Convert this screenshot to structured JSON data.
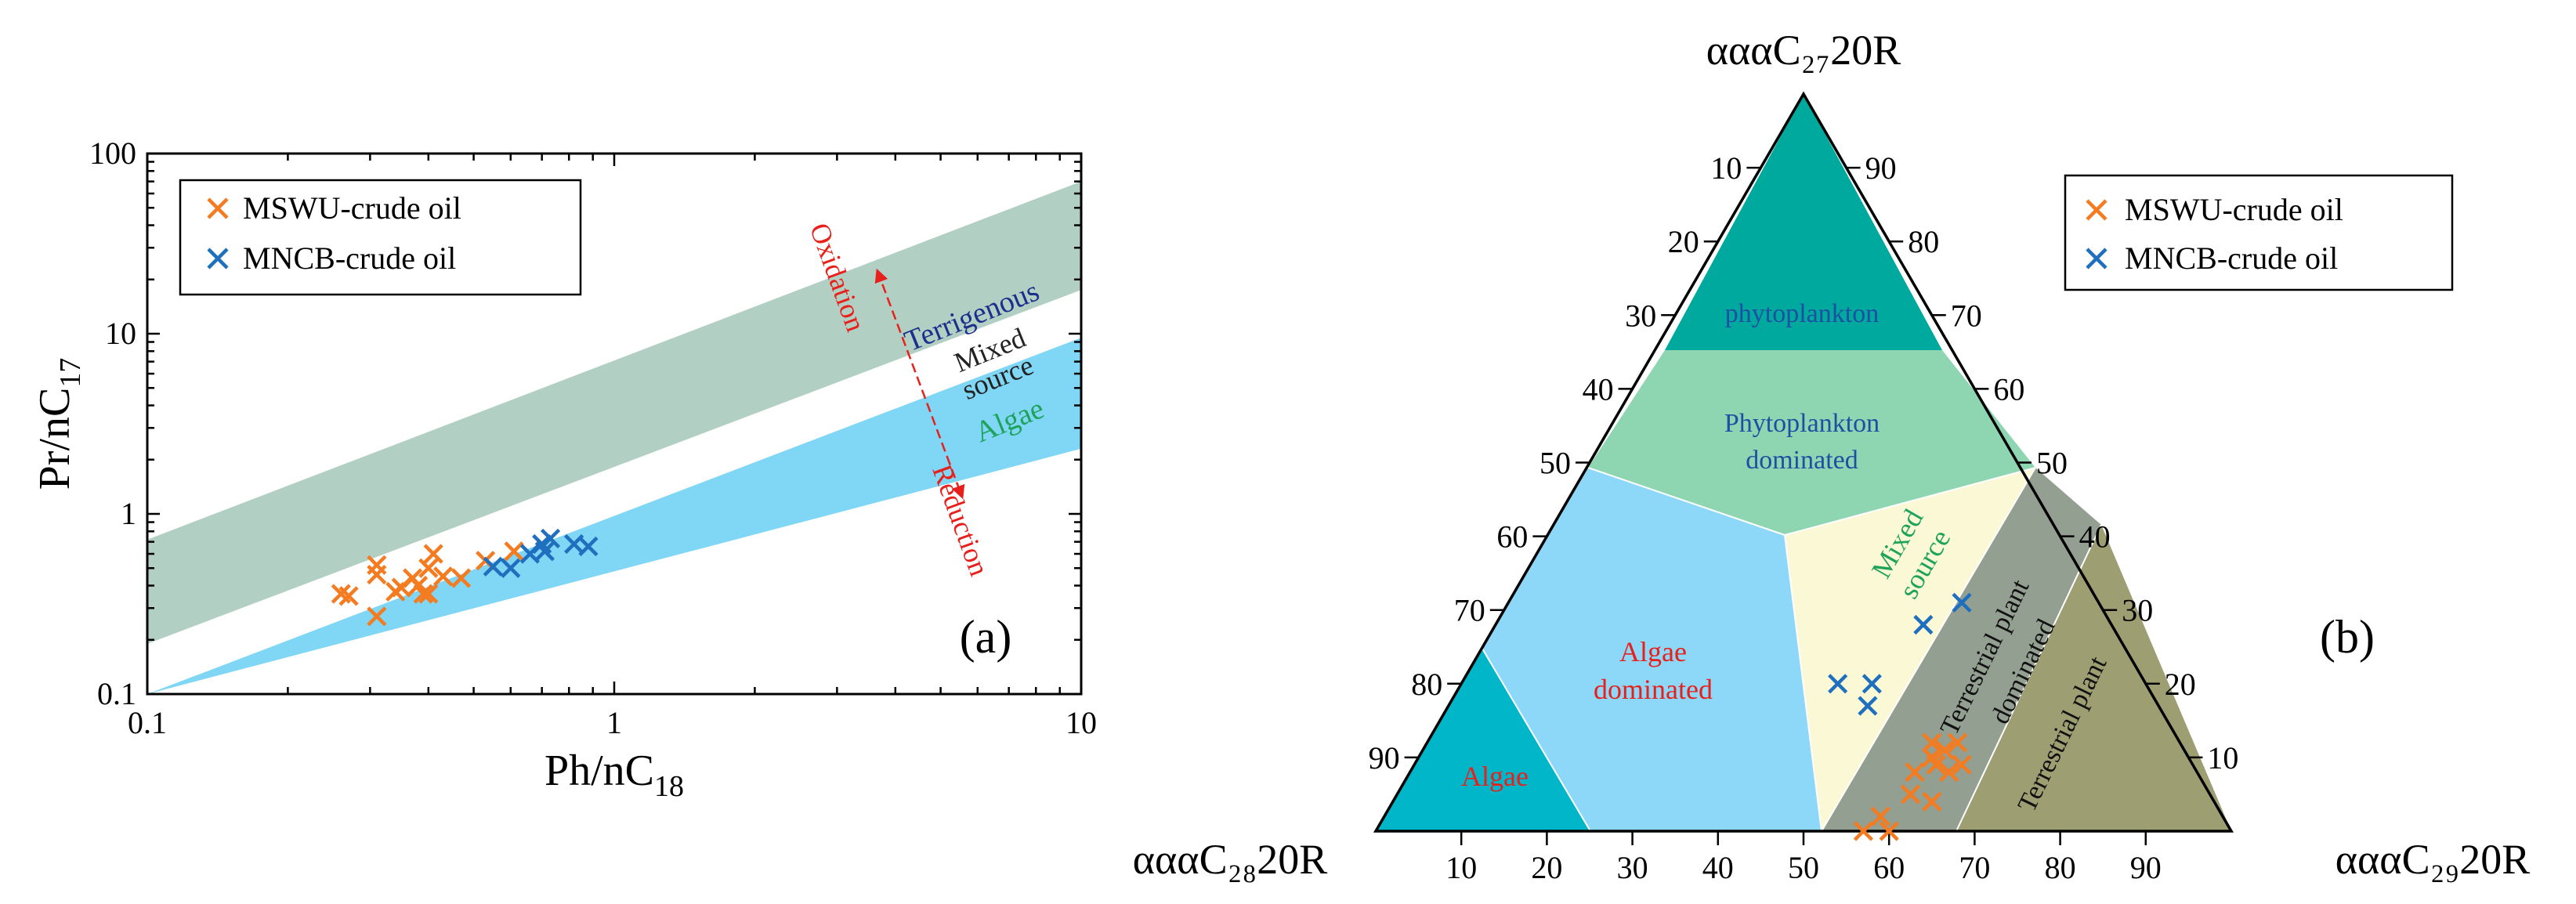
{
  "colors": {
    "msw": "#f47b20",
    "mncb": "#1f6fbf",
    "terrigenous_band": "#b2cfc3",
    "algae_band": "#7fd6f5",
    "red_annotation": "#e8201c",
    "terrigenous_text": "#1c2f8c",
    "algae_text": "#1fa35a",
    "phytoplankton": "#00a99d",
    "phyto_dominated": "#8ed6b2",
    "algae_dominated": "#8dd8f8",
    "algae": "#00b6c8",
    "mixed_source": "#fbf8d5",
    "terr_dominated": "#939f91",
    "terr_plant": "#9e9e73",
    "region_blue_text": "#1e4fa3",
    "region_red_text": "#e8201c",
    "region_green_text": "#1fa35a"
  },
  "chart_data": [
    {
      "type": "scatter",
      "panel_label": "(a)",
      "xlabel": "Ph/nC18",
      "xlabel_main": "Ph/nC",
      "xlabel_sub": "18",
      "ylabel": "Pr/nC17",
      "ylabel_main": "Pr/nC",
      "ylabel_sub": "17",
      "xscale": "log",
      "yscale": "log",
      "xlim": [
        0.1,
        10
      ],
      "ylim": [
        0.1,
        100
      ],
      "xticks": [
        0.1,
        1,
        10
      ],
      "xtick_labels": [
        "0.1",
        "1",
        "10"
      ],
      "yticks": [
        0.1,
        1,
        10,
        100
      ],
      "ytick_labels": [
        "0.1",
        "1",
        "10",
        "100"
      ],
      "legend_position": "top-left",
      "bands": [
        {
          "id": "terrigenous",
          "at_x_min": [
            0.19,
            0.72
          ],
          "at_x_max": [
            17.5,
            70
          ]
        },
        {
          "id": "algae",
          "at_x_min": [
            0.1,
            0.1
          ],
          "at_x_max": [
            2.3,
            9.5
          ]
        }
      ],
      "annotations": {
        "terrigenous": "Terrigenous",
        "mixed_line1": "Mixed",
        "mixed_line2": "source",
        "algae": "Algae",
        "oxidation": "Oxidation",
        "reduction": "Reduction"
      },
      "series": [
        {
          "name": "MSWU-crude oil",
          "marker": "x",
          "points": [
            [
              0.26,
              0.36
            ],
            [
              0.27,
              0.35
            ],
            [
              0.31,
              0.52
            ],
            [
              0.31,
              0.46
            ],
            [
              0.31,
              0.27
            ],
            [
              0.34,
              0.37
            ],
            [
              0.35,
              0.39
            ],
            [
              0.37,
              0.44
            ],
            [
              0.38,
              0.4
            ],
            [
              0.39,
              0.36
            ],
            [
              0.4,
              0.5
            ],
            [
              0.4,
              0.36
            ],
            [
              0.41,
              0.6
            ],
            [
              0.43,
              0.45
            ],
            [
              0.47,
              0.44
            ],
            [
              0.53,
              0.55
            ],
            [
              0.61,
              0.62
            ]
          ]
        },
        {
          "name": "MNCB-crude oil",
          "marker": "x",
          "points": [
            [
              0.55,
              0.51
            ],
            [
              0.6,
              0.5
            ],
            [
              0.66,
              0.6
            ],
            [
              0.7,
              0.68
            ],
            [
              0.71,
              0.62
            ],
            [
              0.73,
              0.73
            ],
            [
              0.82,
              0.68
            ],
            [
              0.88,
              0.66
            ]
          ]
        }
      ]
    },
    {
      "type": "ternary",
      "panel_label": "(b)",
      "top_label": "αααC₂₇20R",
      "left_label": "αααC₂₈20R",
      "right_label": "αααC₂₉20R",
      "ticks": [
        10,
        20,
        30,
        40,
        50,
        60,
        70,
        80,
        90
      ],
      "tick_labels": [
        "10",
        "20",
        "30",
        "40",
        "50",
        "60",
        "70",
        "80",
        "90"
      ],
      "legend_position": "top-right",
      "regions": {
        "phytoplankton": "phytoplankton",
        "phyto_line1": "Phytoplankton",
        "phyto_line2": "dominated",
        "algae_dom_line1": "Algae",
        "algae_dom_line2": "dominated",
        "algae": "Algae",
        "mixed_line1": "Mixed",
        "mixed_line2": "source",
        "terr_dom_line1": "Terrestrial plant",
        "terr_dom_line2": "dominated",
        "terr_plant": "Terrestrial plant"
      },
      "series": [
        {
          "name": "MSWU-crude oil",
          "marker": "x",
          "points": [
            {
              "c27": 5,
              "c29": 60
            },
            {
              "c27": 2,
              "c29": 58
            },
            {
              "c27": 0,
              "c29": 57
            },
            {
              "c27": 0,
              "c29": 60
            },
            {
              "c27": 4,
              "c29": 63
            },
            {
              "c27": 8,
              "c29": 63
            },
            {
              "c27": 9,
              "c29": 61
            },
            {
              "c27": 8,
              "c29": 59
            },
            {
              "c27": 10,
              "c29": 60
            },
            {
              "c27": 11,
              "c29": 61
            },
            {
              "c27": 12,
              "c29": 59
            },
            {
              "c27": 9,
              "c29": 64
            },
            {
              "c27": 12,
              "c29": 62
            }
          ]
        },
        {
          "name": "MNCB-crude oil",
          "marker": "x",
          "points": [
            {
              "c27": 20,
              "c29": 44
            },
            {
              "c27": 20,
              "c29": 48
            },
            {
              "c27": 17,
              "c29": 49
            },
            {
              "c27": 28,
              "c29": 50
            },
            {
              "c27": 31,
              "c29": 53
            }
          ]
        }
      ]
    }
  ]
}
